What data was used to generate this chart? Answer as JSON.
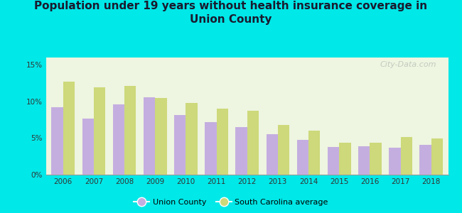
{
  "title": "Population under 19 years without health insurance coverage in\nUnion County",
  "years": [
    2006,
    2007,
    2008,
    2009,
    2010,
    2011,
    2012,
    2013,
    2014,
    2015,
    2016,
    2017,
    2018
  ],
  "union_county": [
    9.2,
    7.7,
    9.6,
    10.6,
    8.1,
    7.2,
    6.5,
    5.5,
    4.8,
    3.8,
    3.9,
    3.7,
    4.1
  ],
  "sc_average": [
    12.7,
    11.9,
    12.1,
    10.5,
    9.8,
    9.0,
    8.7,
    6.8,
    6.0,
    4.4,
    4.4,
    5.1,
    4.9
  ],
  "union_color": "#c4aee0",
  "sc_color": "#cdd97a",
  "background_color": "#00e8e8",
  "plot_bg_color": "#eef5e0",
  "ylim": [
    0,
    16
  ],
  "yticks": [
    0,
    5,
    10,
    15
  ],
  "ytick_labels": [
    "0%",
    "5%",
    "10%",
    "15%"
  ],
  "title_fontsize": 11,
  "legend_union": "Union County",
  "legend_sc": "South Carolina average",
  "watermark": "City-Data.com"
}
